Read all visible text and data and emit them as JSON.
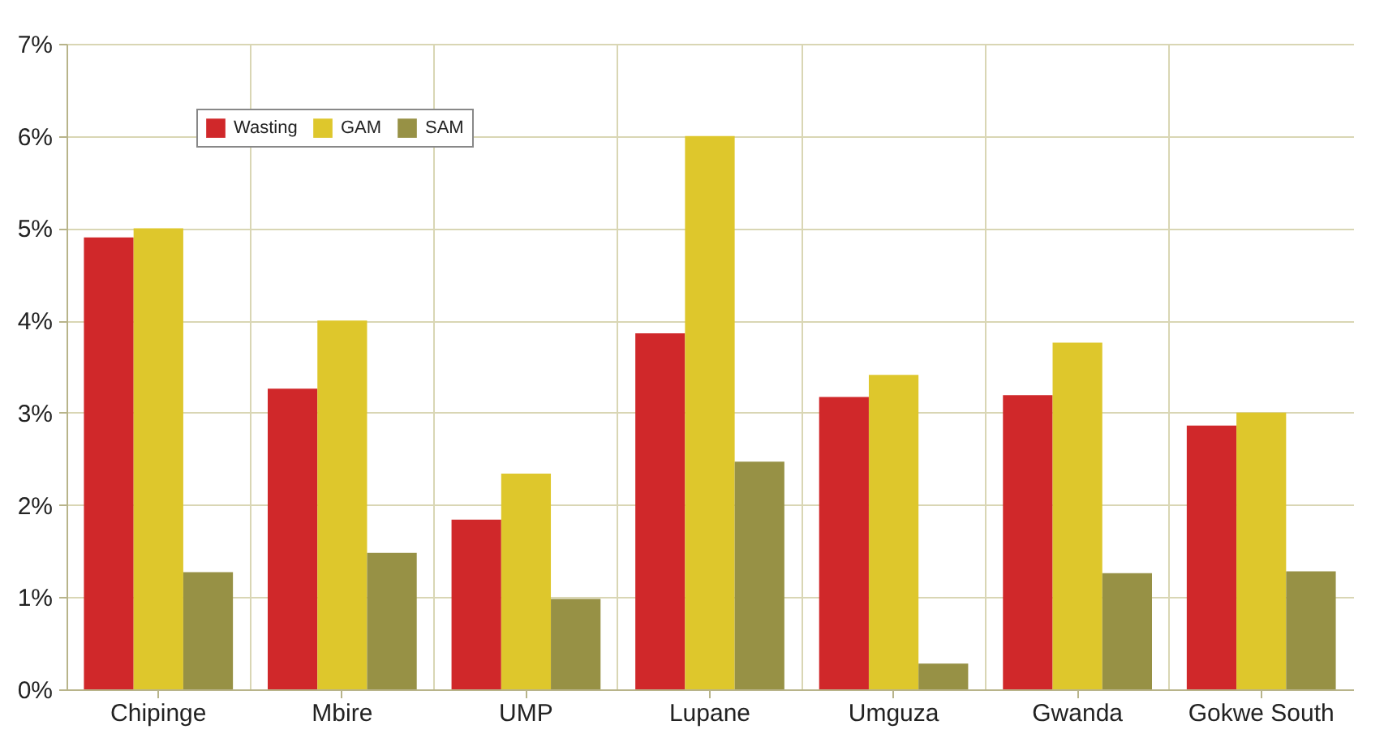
{
  "chart_data": {
    "type": "bar",
    "categories": [
      "Chipinge",
      "Mbire",
      "UMP",
      "Lupane",
      "Umguza",
      "Gwanda",
      "Gokwe South"
    ],
    "series": [
      {
        "name": "Wasting",
        "color": "#d0282a",
        "values": [
          4.9,
          3.26,
          1.84,
          3.86,
          3.17,
          3.19,
          2.86
        ]
      },
      {
        "name": "GAM",
        "color": "#dec72c",
        "values": [
          5.0,
          4.0,
          2.34,
          6.0,
          3.41,
          3.76,
          3.0
        ]
      },
      {
        "name": "SAM",
        "color": "#979145",
        "values": [
          1.27,
          1.48,
          0.98,
          2.47,
          0.28,
          1.26,
          1.28
        ]
      }
    ],
    "ylim": [
      0,
      7
    ],
    "yticks": [
      {
        "value": 0,
        "label": "0%"
      },
      {
        "value": 1,
        "label": "1%"
      },
      {
        "value": 2,
        "label": "2%"
      },
      {
        "value": 3,
        "label": "3%"
      },
      {
        "value": 4,
        "label": "4%"
      },
      {
        "value": 5,
        "label": "5%"
      },
      {
        "value": 6,
        "label": "6%"
      },
      {
        "value": 7,
        "label": "7%"
      }
    ],
    "grid": true,
    "legend": "top left"
  }
}
